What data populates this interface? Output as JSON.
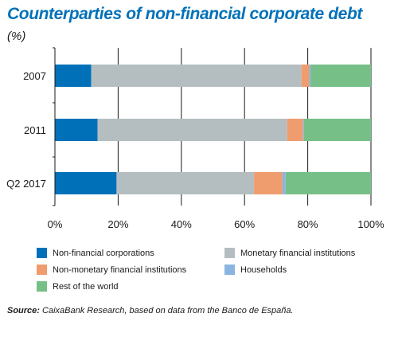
{
  "title": "Counterparties of non-financial corporate debt",
  "subtitle": "(%)",
  "source": {
    "label": "Source:",
    "text": "CaixaBank Research, based on data from the Banco de España."
  },
  "colors": {
    "title": "#0071b9",
    "grid": "#1a1a1a"
  },
  "chart_data": {
    "type": "bar",
    "orientation": "horizontal",
    "stacked": true,
    "categories": [
      "2007",
      "2011",
      "Q2 2017"
    ],
    "xlim": [
      0,
      100
    ],
    "xticks": [
      0,
      20,
      40,
      60,
      80,
      100
    ],
    "xtick_labels": [
      "0%",
      "20%",
      "40%",
      "60%",
      "80%",
      "100%"
    ],
    "grid": true,
    "legend_position": "bottom",
    "series": [
      {
        "name": "Non-financial corporations",
        "color": "#0071b9",
        "values": [
          11.5,
          13.5,
          19.5
        ]
      },
      {
        "name": "Monetary financial institutions",
        "color": "#b4bec1",
        "values": [
          66.5,
          60,
          43.5
        ]
      },
      {
        "name": "Non-monetary financial institutions",
        "color": "#ef9c6e",
        "values": [
          2.5,
          5,
          9
        ]
      },
      {
        "name": "Households",
        "color": "#8cb4e2",
        "values": [
          0.5,
          0.3,
          1
        ]
      },
      {
        "name": "Rest of the world",
        "color": "#76bf87",
        "values": [
          19,
          21.2,
          27
        ]
      }
    ]
  }
}
